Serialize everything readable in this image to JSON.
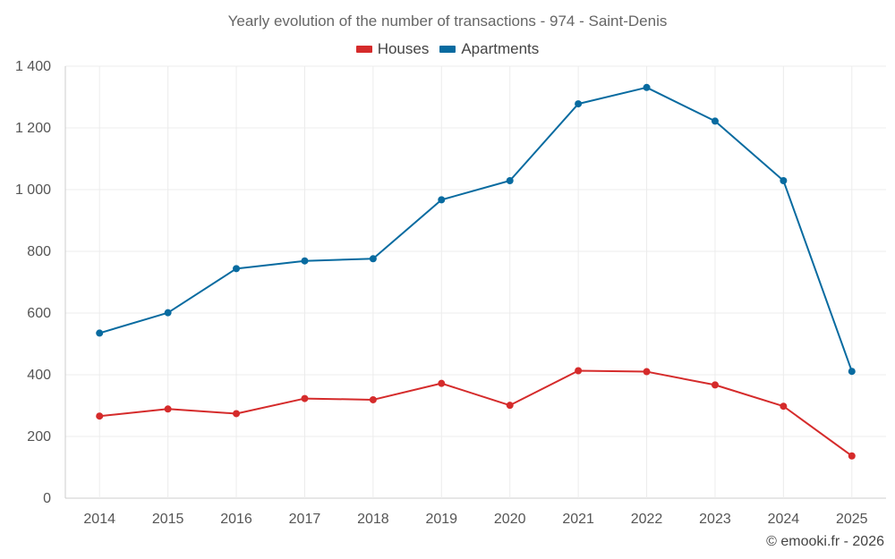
{
  "chart_data": {
    "type": "line",
    "title": "Yearly evolution of the number of transactions - 974 - Saint-Denis",
    "categories": [
      "2014",
      "2015",
      "2016",
      "2017",
      "2018",
      "2019",
      "2020",
      "2021",
      "2022",
      "2023",
      "2024",
      "2025"
    ],
    "series": [
      {
        "name": "Houses",
        "color": "#d52b2b",
        "values": [
          266,
          289,
          274,
          323,
          319,
          372,
          301,
          413,
          410,
          367,
          298,
          137
        ]
      },
      {
        "name": "Apartments",
        "color": "#086ba0",
        "values": [
          535,
          601,
          744,
          769,
          776,
          967,
          1029,
          1278,
          1331,
          1222,
          1029,
          411
        ]
      }
    ],
    "y_ticks": [
      0,
      200,
      400,
      600,
      800,
      1000,
      1200,
      1400
    ],
    "y_tick_labels": [
      "0",
      "200",
      "400",
      "600",
      "800",
      "1 000",
      "1 200",
      "1 400"
    ],
    "ylim": [
      0,
      1400
    ],
    "xlabel": "",
    "ylabel": "",
    "legend_position": "top-center",
    "grid": true
  },
  "credit": "© emooki.fr - 2026"
}
